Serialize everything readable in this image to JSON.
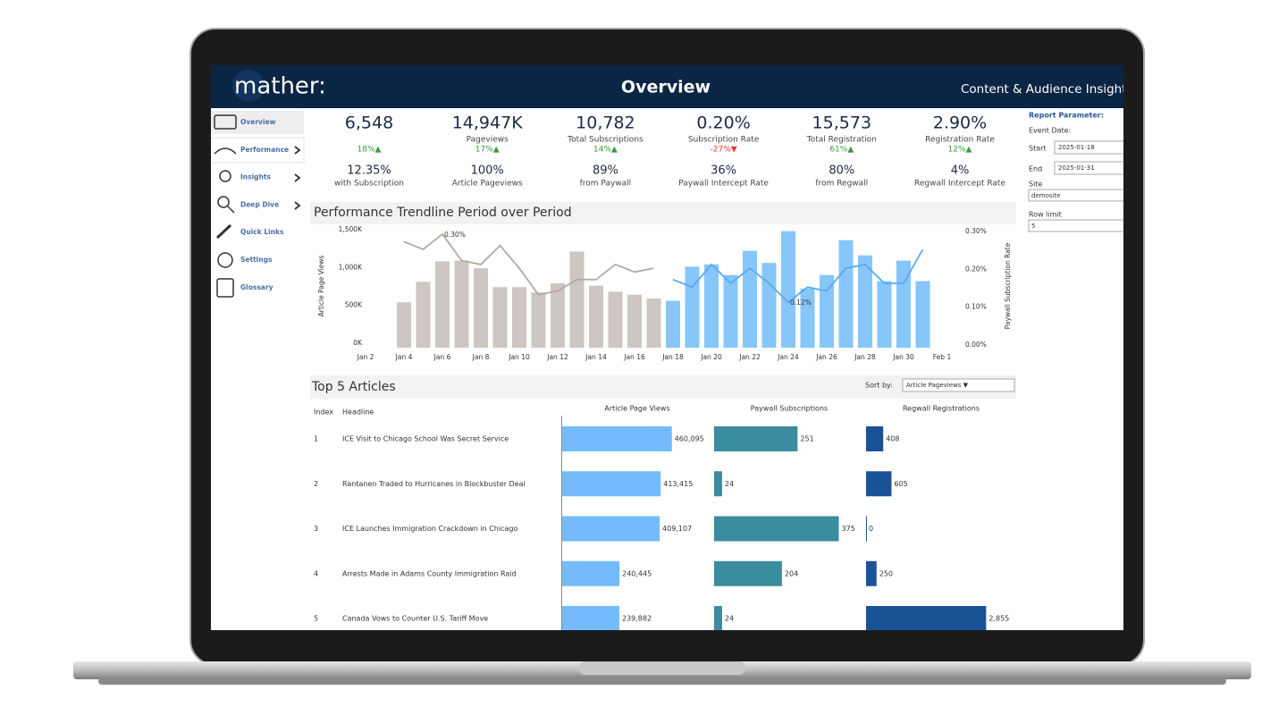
{
  "header": {
    "logo": "mather:",
    "title": "Overview",
    "subtitle": "Content & Audience Insight"
  },
  "sidebar": {
    "items": [
      "Overview",
      "Performance",
      "Insights",
      "Deep Dive",
      "Quick Links",
      "Settings",
      "Glossary"
    ]
  },
  "kpis": {
    "row1": [
      {
        "value": "6,548",
        "change": "18%▲",
        "color": "#3d9a3d"
      },
      {
        "value": "14,947K",
        "label": "Pageviews",
        "change": "17%▲",
        "color": "#3d9a3d"
      },
      {
        "value": "10,782",
        "label": "Total Subscriptions",
        "change": "14%▲",
        "color": "#3d9a3d"
      },
      {
        "value": "0.20%",
        "label": "Subscription Rate",
        "change": "-27%▼",
        "color": "#e03b3b"
      },
      {
        "value": "15,573",
        "label": "Total Registration",
        "change": "61%▲",
        "color": "#3d9a3d"
      },
      {
        "value": "2.90%",
        "label": "Registration Rate",
        "change": "12%▲",
        "color": "#3d9a3d"
      }
    ],
    "row2": [
      {
        "value": "12.35%",
        "label": "with Subscription"
      },
      {
        "value": "100%",
        "label": "Article Pageviews"
      },
      {
        "value": "89%",
        "label": "from Paywall"
      },
      {
        "value": "36%",
        "label": "Paywall Intercept Rate"
      },
      {
        "value": "80%",
        "label": "from Regwall"
      },
      {
        "value": "4%",
        "label": "Regwall Intercept Rate"
      }
    ]
  },
  "parameters": {
    "title": "Report Parameter:",
    "event_date": "Event Date:",
    "start_label": "Start",
    "start": "2025-01-18",
    "end_label": "End",
    "end": "2025-01-31",
    "site_label": "Site",
    "site": "demosite",
    "row_limit_label": "Row limit",
    "row_limit": "5"
  },
  "trend_chart": {
    "type": "bar",
    "title": "Performance Trendline Period over Period",
    "ylabel": "Article Page Views",
    "y2label": "Paywall Subscription Rate",
    "categories": [
      "Jan 2",
      null,
      "Jan 4",
      null,
      "Jan 6",
      null,
      "Jan 8",
      null,
      "Jan 10",
      null,
      "Jan 12",
      null,
      "Jan 14",
      null,
      "Jan 16",
      null,
      "Jan 18",
      null,
      "Jan 20",
      null,
      "Jan 22",
      null,
      "Jan 24",
      null,
      "Jan 26",
      null,
      "Jan 28",
      null,
      "Jan 30",
      null,
      "Feb 1"
    ],
    "ylim": [
      0,
      1600
    ],
    "yticks": [
      {
        "value": 0,
        "label": "0K"
      },
      {
        "value": 500,
        "label": "500K"
      },
      {
        "value": 1000,
        "label": "1,000K"
      },
      {
        "value": 1500,
        "label": "1,500K"
      }
    ],
    "y2lim": [
      0,
      0.32
    ],
    "y2ticks": [
      {
        "value": 0,
        "label": "0.00%"
      },
      {
        "value": 0.1,
        "label": "0.10%"
      },
      {
        "value": 0.2,
        "label": "0.20%"
      },
      {
        "value": 0.3,
        "label": "0.30%"
      }
    ],
    "series": [
      {
        "type": "bar",
        "color": "#cdc6c2",
        "values": [
          null,
          null,
          600,
          870,
          1140,
          1150,
          1050,
          800,
          800,
          730,
          850,
          1270,
          820,
          740,
          700,
          650,
          null,
          null,
          null,
          null,
          null,
          null,
          null,
          null,
          null,
          null,
          null,
          null,
          null,
          null,
          null
        ]
      },
      {
        "type": "bar",
        "color": "#86c6fb",
        "values": [
          null,
          null,
          null,
          null,
          null,
          null,
          null,
          null,
          null,
          null,
          null,
          null,
          null,
          null,
          null,
          null,
          620,
          1070,
          1100,
          960,
          1280,
          1120,
          1540,
          780,
          960,
          1420,
          1220,
          880,
          1150,
          880,
          null
        ]
      },
      {
        "type": "line",
        "axis": "y2",
        "color": "#b3a8a3",
        "values": [
          null,
          null,
          0.28,
          0.26,
          0.3,
          0.23,
          0.22,
          0.27,
          0.21,
          0.14,
          0.15,
          0.18,
          0.18,
          0.22,
          0.2,
          0.21,
          null,
          null,
          null,
          null,
          null,
          null,
          null,
          null,
          null,
          null,
          null,
          null,
          null,
          null,
          null
        ],
        "value_labels": [
          null,
          null,
          null,
          null,
          "0.30%",
          null,
          null,
          null,
          null,
          null,
          null,
          null,
          null,
          null,
          null,
          null,
          null,
          null,
          null,
          null,
          null,
          null,
          null,
          null,
          null,
          null,
          null,
          null,
          null,
          null,
          null
        ]
      },
      {
        "type": "line",
        "axis": "y2",
        "color": "#5aaaf0",
        "values": [
          null,
          null,
          null,
          null,
          null,
          null,
          null,
          null,
          null,
          null,
          null,
          null,
          null,
          null,
          null,
          null,
          0.18,
          0.16,
          0.22,
          0.17,
          0.21,
          0.17,
          0.12,
          0.16,
          0.15,
          0.21,
          0.22,
          0.17,
          0.17,
          0.26,
          null
        ],
        "value_labels": [
          null,
          null,
          null,
          null,
          null,
          null,
          null,
          null,
          null,
          null,
          null,
          null,
          null,
          null,
          null,
          null,
          null,
          null,
          null,
          null,
          null,
          null,
          "0.12%",
          null,
          null,
          null,
          null,
          null,
          null,
          null,
          null
        ]
      }
    ]
  },
  "table": {
    "title": "Top 5 Articles",
    "sort_label": "Sort by:",
    "sort_value": "Article Pageviews ▼",
    "index_header": "Index",
    "headline_header": "Headline",
    "columns": [
      {
        "name": "Article Page Views",
        "color": "#74bbfb",
        "xlim": [
          0,
          600000
        ]
      },
      {
        "name": "Paywall Subscriptions",
        "color": "#3a8c9e",
        "xlim": [
          0,
          430
        ]
      },
      {
        "name": "Regwall Registrations",
        "color": "#1a5296",
        "xlim": [
          0,
          3400
        ]
      }
    ],
    "rows": [
      {
        "index": 1,
        "headline": "ICE Visit to Chicago School Was Secret Service",
        "values": [
          460095,
          251,
          408
        ],
        "value_labels": [
          "460,095",
          null,
          null
        ]
      },
      {
        "index": 2,
        "headline": "Rantanen Traded to Hurricanes in Blockbuster Deal",
        "values": [
          413415,
          24,
          605
        ],
        "value_labels": [
          "413,415",
          null,
          null
        ]
      },
      {
        "index": 3,
        "headline": "ICE Launches Immigration Crackdown in Chicago",
        "values": [
          409107,
          375,
          0
        ],
        "value_labels": [
          "409,107",
          null,
          null
        ]
      },
      {
        "index": 4,
        "headline": "Arrests Made in Adams County Immigration Raid",
        "values": [
          240445,
          204,
          250
        ],
        "value_labels": [
          "240,445",
          null,
          null
        ]
      },
      {
        "index": 5,
        "headline": "Canada Vows to Counter U.S. Tariff Move",
        "values": [
          239882,
          24,
          2855
        ],
        "value_labels": [
          "239,882",
          null,
          "2,855"
        ]
      }
    ]
  }
}
